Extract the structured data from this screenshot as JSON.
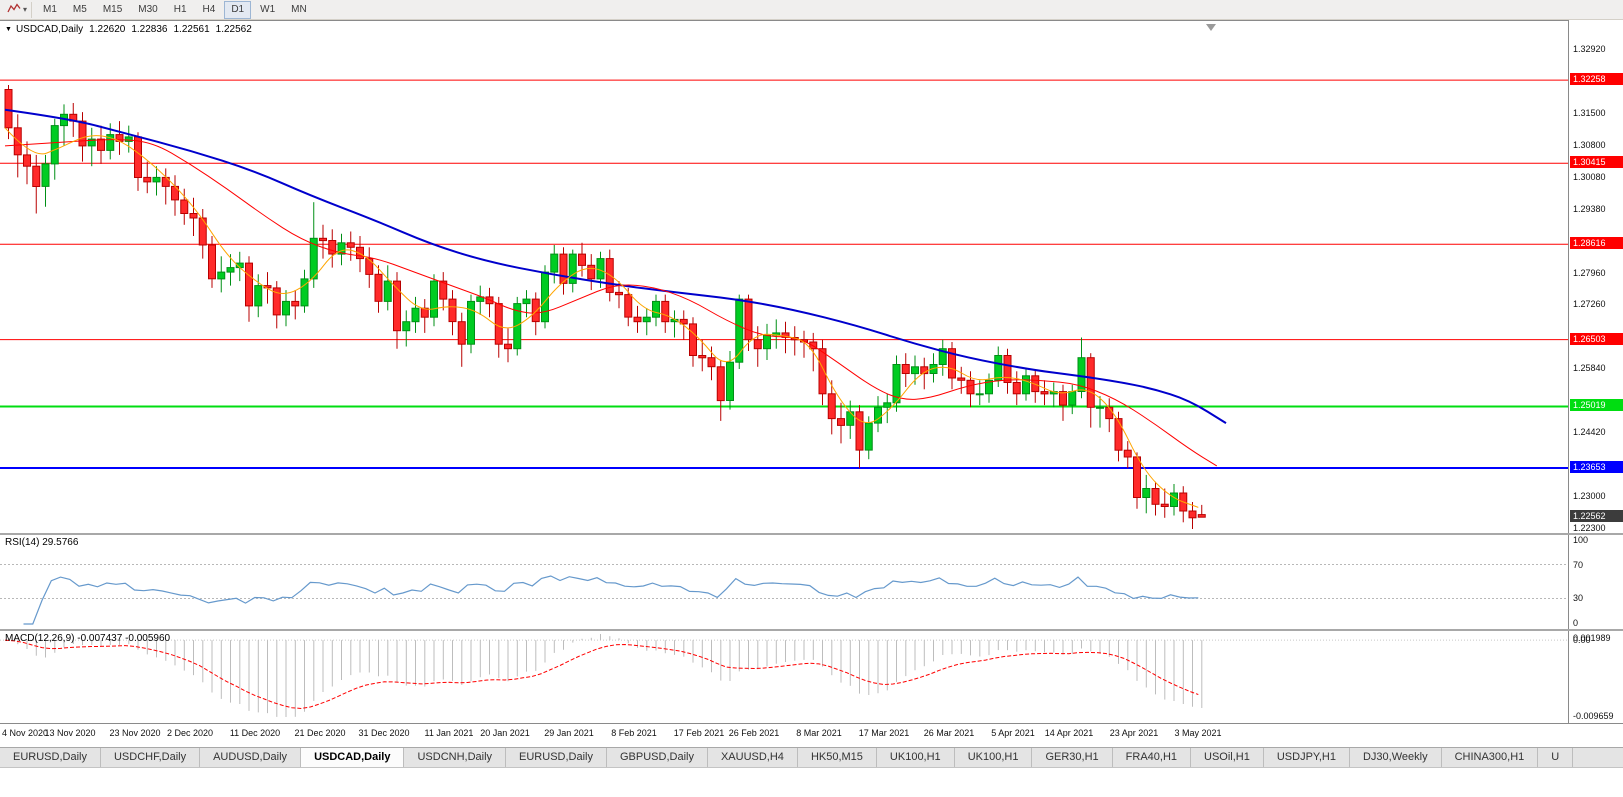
{
  "toolbar": {
    "timeframes": [
      "M1",
      "M5",
      "M15",
      "M30",
      "H1",
      "H4",
      "D1",
      "W1",
      "MN"
    ],
    "active_timeframe": "D1"
  },
  "icons": {
    "chart_menu_arrow": "▼",
    "toolbar_caret": "▾",
    "chart_style_icon": "zigzag-line-chart",
    "chart_shift_marker": "triangle-down"
  },
  "chart": {
    "title": "USDCAD,Daily",
    "ohlc": {
      "open": "1.22620",
      "high": "1.22836",
      "low": "1.22561",
      "close": "1.22562"
    }
  },
  "price_axis": {
    "plain_labels": [
      "1.32920",
      "1.31500",
      "1.30800",
      "1.30080",
      "1.29380",
      "1.27960",
      "1.27260",
      "1.25840",
      "1.24420",
      "1.23000",
      "1.22300"
    ],
    "levels": [
      {
        "price": 1.32258,
        "label": "1.32258",
        "color": "#FF0000",
        "text": "#FFFFFF",
        "width": 1
      },
      {
        "price": 1.30415,
        "label": "1.30415",
        "color": "#FF0000",
        "text": "#FFFFFF",
        "width": 1
      },
      {
        "price": 1.28616,
        "label": "1.28616",
        "color": "#FF0000",
        "text": "#FFFFFF",
        "width": 1
      },
      {
        "price": 1.26503,
        "label": "1.26503",
        "color": "#FF0000",
        "text": "#FFFFFF",
        "width": 1
      },
      {
        "price": 1.25019,
        "label": "1.25019",
        "color": "#00DD11",
        "text": "#FFFFFF",
        "width": 2
      },
      {
        "price": 1.23653,
        "label": "1.23653",
        "color": "#0000FF",
        "text": "#FFFFFF",
        "width": 2
      }
    ],
    "current": {
      "price": 1.22562,
      "label": "1.22562",
      "bg": "#3C3C3C",
      "text": "#FFFFFF"
    }
  },
  "chart_data": {
    "type": "candlestick",
    "symbol": "USDCAD",
    "timeframe": "Daily",
    "price_range": {
      "top": 1.3357,
      "bottom": 1.2219
    },
    "x_labels": [
      "4 Nov 2020",
      "13 Nov 2020",
      "23 Nov 2020",
      "2 Dec 2020",
      "11 Dec 2020",
      "21 Dec 2020",
      "31 Dec 2020",
      "11 Jan 2021",
      "20 Jan 2021",
      "29 Jan 2021",
      "8 Feb 2021",
      "17 Feb 2021",
      "26 Feb 2021",
      "8 Mar 2021",
      "17 Mar 2021",
      "26 Mar 2021",
      "5 Apr 2021",
      "14 Apr 2021",
      "23 Apr 2021",
      "3 May 2021"
    ],
    "style": {
      "up_fill": "#00CC22",
      "up_border": "#008F16",
      "down_fill": "#FF2A2A",
      "down_border": "#B80000"
    },
    "candles": [
      [
        1.3205,
        1.3215,
        1.3095,
        1.312
      ],
      [
        1.312,
        1.315,
        1.301,
        1.306
      ],
      [
        1.306,
        1.309,
        1.2995,
        1.3035
      ],
      [
        1.3035,
        1.306,
        1.293,
        1.299
      ],
      [
        1.299,
        1.306,
        1.2945,
        1.304
      ],
      [
        1.304,
        1.314,
        1.3005,
        1.3125
      ],
      [
        1.3125,
        1.3172,
        1.308,
        1.315
      ],
      [
        1.315,
        1.3175,
        1.31,
        1.3135
      ],
      [
        1.3135,
        1.3155,
        1.3045,
        1.308
      ],
      [
        1.308,
        1.312,
        1.3035,
        1.3095
      ],
      [
        1.3095,
        1.3125,
        1.304,
        1.307
      ],
      [
        1.307,
        1.313,
        1.305,
        1.3105
      ],
      [
        1.3105,
        1.3135,
        1.306,
        1.309
      ],
      [
        1.309,
        1.3125,
        1.3065,
        1.31
      ],
      [
        1.31,
        1.311,
        1.298,
        1.301
      ],
      [
        1.301,
        1.3045,
        1.2975,
        1.3
      ],
      [
        1.3,
        1.3035,
        1.297,
        1.301
      ],
      [
        1.301,
        1.303,
        1.295,
        1.299
      ],
      [
        1.299,
        1.3015,
        1.2925,
        1.296
      ],
      [
        1.296,
        1.2985,
        1.2905,
        1.293
      ],
      [
        1.293,
        1.2965,
        1.288,
        1.292
      ],
      [
        1.292,
        1.294,
        1.283,
        1.286
      ],
      [
        1.286,
        1.288,
        1.2765,
        1.2785
      ],
      [
        1.2785,
        1.2835,
        1.2755,
        1.28
      ],
      [
        1.28,
        1.284,
        1.277,
        1.281
      ],
      [
        1.281,
        1.2845,
        1.278,
        1.282
      ],
      [
        1.282,
        1.2835,
        1.269,
        1.2725
      ],
      [
        1.2725,
        1.2795,
        1.27,
        1.277
      ],
      [
        1.277,
        1.28,
        1.273,
        1.2765
      ],
      [
        1.2765,
        1.278,
        1.2675,
        1.2705
      ],
      [
        1.2705,
        1.276,
        1.268,
        1.2735
      ],
      [
        1.2735,
        1.276,
        1.2695,
        1.2725
      ],
      [
        1.2725,
        1.2805,
        1.271,
        1.2785
      ],
      [
        1.2785,
        1.2955,
        1.2765,
        1.2875
      ],
      [
        1.2875,
        1.2905,
        1.283,
        1.287
      ],
      [
        1.287,
        1.2895,
        1.281,
        1.284
      ],
      [
        1.284,
        1.2885,
        1.2815,
        1.2865
      ],
      [
        1.2865,
        1.289,
        1.2825,
        1.2855
      ],
      [
        1.2855,
        1.288,
        1.28,
        1.283
      ],
      [
        1.283,
        1.2855,
        1.2765,
        1.2795
      ],
      [
        1.2795,
        1.2815,
        1.271,
        1.2735
      ],
      [
        1.2735,
        1.2815,
        1.2715,
        1.278
      ],
      [
        1.278,
        1.28,
        1.263,
        1.267
      ],
      [
        1.267,
        1.2715,
        1.2635,
        1.269
      ],
      [
        1.269,
        1.2745,
        1.2665,
        1.272
      ],
      [
        1.272,
        1.274,
        1.2665,
        1.27
      ],
      [
        1.27,
        1.2795,
        1.268,
        1.278
      ],
      [
        1.278,
        1.28,
        1.2715,
        1.274
      ],
      [
        1.274,
        1.276,
        1.266,
        1.269
      ],
      [
        1.269,
        1.271,
        1.259,
        1.264
      ],
      [
        1.264,
        1.275,
        1.262,
        1.2735
      ],
      [
        1.2735,
        1.277,
        1.2705,
        1.2745
      ],
      [
        1.2745,
        1.2765,
        1.27,
        1.273
      ],
      [
        1.273,
        1.2745,
        1.261,
        1.264
      ],
      [
        1.264,
        1.2675,
        1.26,
        1.263
      ],
      [
        1.263,
        1.2745,
        1.2615,
        1.273
      ],
      [
        1.273,
        1.276,
        1.27,
        1.274
      ],
      [
        1.274,
        1.2755,
        1.266,
        1.269
      ],
      [
        1.269,
        1.2815,
        1.2675,
        1.28
      ],
      [
        1.28,
        1.286,
        1.2775,
        1.284
      ],
      [
        1.284,
        1.2855,
        1.275,
        1.2775
      ],
      [
        1.2775,
        1.285,
        1.2755,
        1.284
      ],
      [
        1.284,
        1.2865,
        1.279,
        1.2815
      ],
      [
        1.2815,
        1.284,
        1.276,
        1.2785
      ],
      [
        1.2785,
        1.2845,
        1.2765,
        1.283
      ],
      [
        1.283,
        1.285,
        1.2735,
        1.2755
      ],
      [
        1.2755,
        1.278,
        1.272,
        1.275
      ],
      [
        1.275,
        1.2765,
        1.268,
        1.27
      ],
      [
        1.27,
        1.2725,
        1.2665,
        1.269
      ],
      [
        1.269,
        1.272,
        1.266,
        1.27
      ],
      [
        1.27,
        1.275,
        1.268,
        1.2735
      ],
      [
        1.2735,
        1.275,
        1.2665,
        1.269
      ],
      [
        1.269,
        1.2715,
        1.2655,
        1.2695
      ],
      [
        1.2695,
        1.2715,
        1.265,
        1.2685
      ],
      [
        1.2685,
        1.27,
        1.259,
        1.2615
      ],
      [
        1.2615,
        1.265,
        1.258,
        1.261
      ],
      [
        1.261,
        1.2635,
        1.256,
        1.259
      ],
      [
        1.259,
        1.2605,
        1.247,
        1.2515
      ],
      [
        1.2515,
        1.2625,
        1.2495,
        1.26
      ],
      [
        1.26,
        1.275,
        1.2585,
        1.274
      ],
      [
        1.274,
        1.275,
        1.2625,
        1.265
      ],
      [
        1.265,
        1.268,
        1.259,
        1.263
      ],
      [
        1.263,
        1.2685,
        1.2605,
        1.266
      ],
      [
        1.266,
        1.2695,
        1.263,
        1.2665
      ],
      [
        1.2665,
        1.269,
        1.262,
        1.2655
      ],
      [
        1.2655,
        1.268,
        1.2615,
        1.265
      ],
      [
        1.265,
        1.267,
        1.261,
        1.2645
      ],
      [
        1.2645,
        1.2665,
        1.258,
        1.263
      ],
      [
        1.263,
        1.265,
        1.2505,
        1.253
      ],
      [
        1.253,
        1.256,
        1.244,
        1.2475
      ],
      [
        1.2475,
        1.251,
        1.242,
        1.246
      ],
      [
        1.246,
        1.2515,
        1.243,
        1.249
      ],
      [
        1.249,
        1.2505,
        1.2365,
        1.2405
      ],
      [
        1.2405,
        1.248,
        1.2385,
        1.2465
      ],
      [
        1.2465,
        1.2525,
        1.2445,
        1.25
      ],
      [
        1.25,
        1.253,
        1.2465,
        1.251
      ],
      [
        1.251,
        1.2615,
        1.249,
        1.2595
      ],
      [
        1.2595,
        1.262,
        1.2545,
        1.2575
      ],
      [
        1.2575,
        1.2615,
        1.255,
        1.259
      ],
      [
        1.259,
        1.261,
        1.254,
        1.2575
      ],
      [
        1.2575,
        1.262,
        1.2555,
        1.2595
      ],
      [
        1.2595,
        1.265,
        1.257,
        1.263
      ],
      [
        1.263,
        1.2645,
        1.254,
        1.2565
      ],
      [
        1.2565,
        1.259,
        1.253,
        1.256
      ],
      [
        1.256,
        1.258,
        1.25,
        1.253
      ],
      [
        1.253,
        1.256,
        1.2505,
        1.253
      ],
      [
        1.253,
        1.2575,
        1.251,
        1.256
      ],
      [
        1.256,
        1.2635,
        1.2545,
        1.2615
      ],
      [
        1.2615,
        1.263,
        1.253,
        1.2555
      ],
      [
        1.2555,
        1.258,
        1.2505,
        1.253
      ],
      [
        1.253,
        1.2585,
        1.2515,
        1.257
      ],
      [
        1.257,
        1.2585,
        1.251,
        1.2535
      ],
      [
        1.2535,
        1.256,
        1.2505,
        1.253
      ],
      [
        1.253,
        1.2555,
        1.25,
        1.2535
      ],
      [
        1.2535,
        1.255,
        1.247,
        1.2505
      ],
      [
        1.2505,
        1.255,
        1.2485,
        1.2535
      ],
      [
        1.2535,
        1.2655,
        1.252,
        1.261
      ],
      [
        1.261,
        1.262,
        1.2455,
        1.25
      ],
      [
        1.25,
        1.2525,
        1.2455,
        1.25
      ],
      [
        1.25,
        1.252,
        1.2445,
        1.2475
      ],
      [
        1.2475,
        1.249,
        1.238,
        1.2405
      ],
      [
        1.2405,
        1.2425,
        1.2365,
        1.239
      ],
      [
        1.239,
        1.24,
        1.2275,
        1.23
      ],
      [
        1.23,
        1.235,
        1.2265,
        1.232
      ],
      [
        1.232,
        1.2335,
        1.226,
        1.2285
      ],
      [
        1.2285,
        1.232,
        1.2255,
        1.228
      ],
      [
        1.228,
        1.233,
        1.226,
        1.231
      ],
      [
        1.231,
        1.2325,
        1.2245,
        1.227
      ],
      [
        1.227,
        1.229,
        1.223,
        1.2255
      ],
      [
        1.2262,
        1.22836,
        1.22561,
        1.22562
      ]
    ],
    "moving_averages": [
      {
        "name": "ma-slow-blue",
        "color": "#0000CC",
        "width": 2,
        "points": [
          [
            0,
            1.316
          ],
          [
            7,
            1.314
          ],
          [
            13,
            1.3108
          ],
          [
            20,
            1.307
          ],
          [
            27,
            1.3024
          ],
          [
            33,
            1.297
          ],
          [
            40,
            1.2915
          ],
          [
            46,
            1.2862
          ],
          [
            52,
            1.2824
          ],
          [
            59,
            1.2795
          ],
          [
            66,
            1.2772
          ],
          [
            72,
            1.2756
          ],
          [
            79,
            1.274
          ],
          [
            85,
            1.2718
          ],
          [
            92,
            1.2682
          ],
          [
            98,
            1.2643
          ],
          [
            104,
            1.261
          ],
          [
            111,
            1.2583
          ],
          [
            116,
            1.257
          ],
          [
            120,
            1.2558
          ],
          [
            124,
            1.2542
          ],
          [
            128,
            1.2516
          ],
          [
            132,
            1.2465
          ]
        ]
      },
      {
        "name": "ma-medium-red",
        "color": "#FF0000",
        "width": 1,
        "points": [
          [
            0,
            1.308
          ],
          [
            6,
            1.3088
          ],
          [
            12,
            1.3096
          ],
          [
            16,
            1.3088
          ],
          [
            20,
            1.304
          ],
          [
            24,
            1.2985
          ],
          [
            28,
            1.2925
          ],
          [
            32,
            1.2872
          ],
          [
            36,
            1.2842
          ],
          [
            40,
            1.2832
          ],
          [
            44,
            1.2802
          ],
          [
            48,
            1.2772
          ],
          [
            52,
            1.2742
          ],
          [
            55,
            1.2714
          ],
          [
            58,
            1.2706
          ],
          [
            62,
            1.274
          ],
          [
            66,
            1.2774
          ],
          [
            70,
            1.2768
          ],
          [
            74,
            1.274
          ],
          [
            78,
            1.2692
          ],
          [
            82,
            1.2657
          ],
          [
            86,
            1.2656
          ],
          [
            90,
            1.26
          ],
          [
            94,
            1.2542
          ],
          [
            97,
            1.2516
          ],
          [
            100,
            1.252
          ],
          [
            104,
            1.2548
          ],
          [
            108,
            1.2562
          ],
          [
            112,
            1.256
          ],
          [
            116,
            1.2552
          ],
          [
            120,
            1.252
          ],
          [
            124,
            1.2468
          ],
          [
            128,
            1.2408
          ],
          [
            131,
            1.237
          ]
        ]
      },
      {
        "name": "ma-fast-orange",
        "color": "#FFA500",
        "width": 1,
        "points": [
          [
            0,
            1.312
          ],
          [
            3,
            1.3052
          ],
          [
            6,
            1.3076
          ],
          [
            9,
            1.3106
          ],
          [
            12,
            1.3098
          ],
          [
            15,
            1.3056
          ],
          [
            18,
            1.3
          ],
          [
            21,
            1.293
          ],
          [
            24,
            1.2836
          ],
          [
            27,
            1.278
          ],
          [
            30,
            1.2744
          ],
          [
            33,
            1.2776
          ],
          [
            36,
            1.2856
          ],
          [
            39,
            1.284
          ],
          [
            42,
            1.277
          ],
          [
            45,
            1.2712
          ],
          [
            48,
            1.2726
          ],
          [
            51,
            1.2716
          ],
          [
            54,
            1.2666
          ],
          [
            57,
            1.27
          ],
          [
            60,
            1.2776
          ],
          [
            63,
            1.2816
          ],
          [
            66,
            1.279
          ],
          [
            69,
            1.2716
          ],
          [
            72,
            1.2704
          ],
          [
            75,
            1.2656
          ],
          [
            78,
            1.2582
          ],
          [
            81,
            1.2664
          ],
          [
            84,
            1.266
          ],
          [
            87,
            1.2646
          ],
          [
            90,
            1.252
          ],
          [
            93,
            1.2452
          ],
          [
            96,
            1.25
          ],
          [
            99,
            1.258
          ],
          [
            102,
            1.2594
          ],
          [
            105,
            1.2556
          ],
          [
            108,
            1.257
          ],
          [
            111,
            1.2556
          ],
          [
            114,
            1.2526
          ],
          [
            117,
            1.2546
          ],
          [
            120,
            1.249
          ],
          [
            123,
            1.2362
          ],
          [
            126,
            1.23
          ],
          [
            129,
            1.2278
          ]
        ]
      }
    ]
  },
  "rsi": {
    "label": "RSI(14) 29.5766",
    "period": 14,
    "value": 29.5766,
    "levels": [
      "100",
      "70",
      "30",
      "0"
    ],
    "line_color": "#6699CC"
  },
  "macd": {
    "label": "MACD(12,26,9) -0.007437 -0.005960",
    "params": [
      12,
      26,
      9
    ],
    "macd_value": -0.007437,
    "signal_value": -0.00596,
    "axis_labels": [
      "0.001989",
      "0.00",
      "-0.009659"
    ],
    "histogram_color": "#BDBDBD",
    "signal_color": "#FF0000"
  },
  "tabs": {
    "items": [
      "EURUSD,Daily",
      "USDCHF,Daily",
      "AUDUSD,Daily",
      "USDCAD,Daily",
      "USDCNH,Daily",
      "EURUSD,Daily",
      "GBPUSD,Daily",
      "XAUUSD,H4",
      "HK50,M15",
      "UK100,H1",
      "UK100,H1",
      "GER30,H1",
      "FRA40,H1",
      "USOil,H1",
      "USDJPY,H1",
      "DJ30,Weekly",
      "CHINA300,H1",
      "U"
    ],
    "active_index": 3
  }
}
